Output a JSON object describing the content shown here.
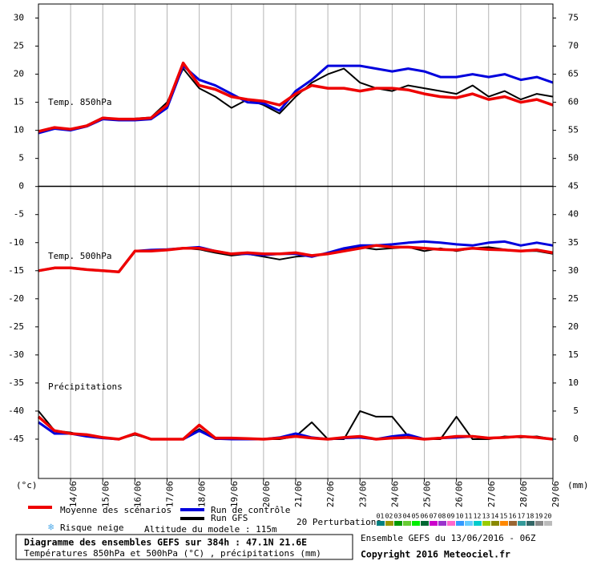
{
  "chart_data": {
    "type": "line",
    "x": [
      -1,
      -0.5,
      0,
      0.5,
      1,
      1.5,
      2,
      2.5,
      3,
      3.5,
      4,
      4.5,
      5,
      5.5,
      6,
      6.5,
      7,
      7.5,
      8,
      8.5,
      9,
      9.5,
      10,
      10.5,
      11,
      11.5,
      12,
      12.5,
      13,
      13.5,
      14,
      14.5,
      15
    ],
    "xlim": [
      -1,
      15
    ],
    "xticks": [
      {
        "value": 0,
        "label": "14/06"
      },
      {
        "value": 1,
        "label": "15/06"
      },
      {
        "value": 2,
        "label": "16/06"
      },
      {
        "value": 3,
        "label": "17/06"
      },
      {
        "value": 4,
        "label": "18/06"
      },
      {
        "value": 5,
        "label": "19/06"
      },
      {
        "value": 6,
        "label": "20/06"
      },
      {
        "value": 7,
        "label": "21/06"
      },
      {
        "value": 8,
        "label": "22/06"
      },
      {
        "value": 9,
        "label": "23/06"
      },
      {
        "value": 10,
        "label": "24/06"
      },
      {
        "value": 11,
        "label": "25/06"
      },
      {
        "value": 12,
        "label": "26/06"
      },
      {
        "value": 13,
        "label": "27/06"
      },
      {
        "value": 14,
        "label": "28/06"
      },
      {
        "value": 15,
        "label": "29/06"
      }
    ],
    "ylim": [
      -52,
      32.5
    ],
    "yticks": [
      30,
      25,
      20,
      15,
      10,
      5,
      0,
      -5,
      -10,
      -15,
      -20,
      -25,
      -30,
      -35,
      -40,
      -45
    ],
    "y2lim": [
      -7,
      77.5
    ],
    "y2ticks": [
      75,
      70,
      65,
      60,
      55,
      50,
      45,
      40,
      35,
      30,
      25,
      20,
      15,
      10,
      5,
      0
    ],
    "ylabel": "(°c)",
    "y2label": "(mm)",
    "grid": true,
    "annotations": [
      {
        "text": "Temp. 850hPa"
      },
      {
        "text": "Temp. 500hPa"
      },
      {
        "text": "Précipitations"
      }
    ],
    "series": [
      {
        "color": "#000000",
        "width": 2,
        "axis": "y",
        "values": [
          9.7,
          10.4,
          10.1,
          10.9,
          12.3,
          12,
          12.1,
          12.3,
          15,
          21,
          17.5,
          16,
          14,
          15.5,
          14.5,
          13,
          16,
          18.5,
          20,
          21,
          18.5,
          17.5,
          17,
          18,
          17.5,
          17,
          16.5,
          18,
          16,
          17,
          15.5,
          16.5,
          16
        ]
      },
      {
        "color": "#0000dd",
        "width": 3,
        "axis": "y",
        "values": [
          9.5,
          10.3,
          10,
          10.7,
          12,
          11.8,
          11.8,
          12,
          14,
          21.5,
          19,
          18,
          16.5,
          15,
          14.8,
          13.5,
          17,
          19,
          21.5,
          21.5,
          21.5,
          21,
          20.5,
          21,
          20.5,
          19.5,
          19.5,
          20,
          19.5,
          20,
          19,
          19.5,
          18.5
        ]
      },
      {
        "color": "#ee0000",
        "width": 3.5,
        "axis": "y",
        "values": [
          9.8,
          10.5,
          10.2,
          10.8,
          12.2,
          12,
          12,
          12.2,
          14.5,
          22,
          18,
          17.3,
          16,
          15.5,
          15.2,
          14.5,
          16.5,
          18,
          17.5,
          17.5,
          17,
          17.5,
          17.5,
          17.2,
          16.5,
          16,
          15.8,
          16.5,
          15.5,
          16,
          15,
          15.5,
          14.5
        ]
      },
      {
        "color": "#000000",
        "width": 2,
        "axis": "y",
        "values": [
          -15,
          -14.6,
          -14.5,
          -14.8,
          -15,
          -15.2,
          -11.5,
          -11.5,
          -11.2,
          -11,
          -11.2,
          -11.8,
          -12.3,
          -12,
          -12.5,
          -13,
          -12.5,
          -12.3,
          -12,
          -11.3,
          -10.8,
          -11.2,
          -11,
          -10.8,
          -11.5,
          -11,
          -11.5,
          -11,
          -10.8,
          -11.2,
          -11.5,
          -11.5,
          -12
        ]
      },
      {
        "color": "#0000dd",
        "width": 3,
        "axis": "y",
        "values": [
          -15,
          -14.5,
          -14.5,
          -14.8,
          -15,
          -15.2,
          -11.5,
          -11.3,
          -11.2,
          -11,
          -10.8,
          -11.5,
          -12,
          -12,
          -12.2,
          -12,
          -12,
          -12.5,
          -11.8,
          -11,
          -10.5,
          -10.5,
          -10.3,
          -10,
          -9.8,
          -10,
          -10.3,
          -10.5,
          -10,
          -9.8,
          -10.5,
          -10,
          -10.5
        ]
      },
      {
        "color": "#ee0000",
        "width": 3.5,
        "axis": "y",
        "values": [
          -15,
          -14.5,
          -14.5,
          -14.8,
          -15,
          -15.2,
          -11.5,
          -11.5,
          -11.3,
          -11,
          -11,
          -11.5,
          -12,
          -11.8,
          -12,
          -12,
          -11.8,
          -12.3,
          -12,
          -11.5,
          -11,
          -10.5,
          -10.8,
          -10.8,
          -11,
          -11.2,
          -11.3,
          -11,
          -11.2,
          -11.3,
          -11.5,
          -11.3,
          -11.8
        ]
      },
      {
        "color": "#000000",
        "width": 2,
        "axis": "y2",
        "values": [
          5,
          1.5,
          1.2,
          0.5,
          0.2,
          0,
          0.8,
          0,
          0,
          0,
          1.8,
          0,
          0,
          0,
          0,
          0,
          0.5,
          3,
          0,
          0,
          5,
          4,
          4,
          0.5,
          0,
          0,
          4,
          0,
          0,
          0.5,
          0.3,
          0.5,
          0
        ]
      },
      {
        "color": "#0000dd",
        "width": 3,
        "axis": "y2",
        "values": [
          3,
          1,
          1,
          0.5,
          0.2,
          0,
          1,
          0,
          0,
          0,
          1.5,
          0.1,
          0,
          0,
          0,
          0.3,
          1,
          0.3,
          0,
          0.2,
          0.3,
          0,
          0.5,
          0.8,
          0,
          0.2,
          0.3,
          0.5,
          0.2,
          0.3,
          0.5,
          0.3,
          0
        ]
      },
      {
        "color": "#ee0000",
        "width": 3.5,
        "axis": "y2",
        "values": [
          4,
          1.5,
          1,
          0.8,
          0.3,
          0,
          1,
          0,
          0,
          0,
          2.5,
          0.2,
          0.2,
          0.1,
          0,
          0.2,
          0.5,
          0.2,
          0,
          0.3,
          0.5,
          0,
          0.2,
          0.3,
          0,
          0.2,
          0.5,
          0.5,
          0.2,
          0.3,
          0.5,
          0.3,
          0
        ]
      }
    ],
    "legend": [
      {
        "name": "Moyenne des scénarios",
        "color": "#ee0000"
      },
      {
        "name": "Run de contrôle",
        "color": "#0000dd"
      },
      {
        "name": "Run GFS",
        "color": "#000000"
      }
    ],
    "snow_label": "Risque neige",
    "altitude": "Altitude du modele : 115m",
    "perturbations": {
      "label": "20 Perturbations",
      "items": [
        {
          "label": "01",
          "color": "#008080"
        },
        {
          "label": "02",
          "color": "#999900"
        },
        {
          "label": "03",
          "color": "#009900"
        },
        {
          "label": "04",
          "color": "#66cc33"
        },
        {
          "label": "05",
          "color": "#00ee00"
        },
        {
          "label": "06",
          "color": "#006633"
        },
        {
          "label": "07",
          "color": "#cc00cc"
        },
        {
          "label": "08",
          "color": "#9933cc"
        },
        {
          "label": "09",
          "color": "#ff66cc"
        },
        {
          "label": "10",
          "color": "#3399ff"
        },
        {
          "label": "11",
          "color": "#66ccff"
        },
        {
          "label": "12",
          "color": "#00cccc"
        },
        {
          "label": "13",
          "color": "#99cc00"
        },
        {
          "label": "14",
          "color": "#888800"
        },
        {
          "label": "15",
          "color": "#ff8800"
        },
        {
          "label": "16",
          "color": "#996633"
        },
        {
          "label": "17",
          "color": "#339999"
        },
        {
          "label": "18",
          "color": "#336666"
        },
        {
          "label": "19",
          "color": "#888888"
        },
        {
          "label": "20",
          "color": "#bbbbbb"
        }
      ]
    },
    "info_title": "Diagramme des ensembles GEFS sur 384h : 47.1N 21.6E",
    "info_subtitle": "Températures 850hPa et 500hPa (°C) , précipitations (mm)",
    "run": "Ensemble GEFS du 13/06/2016 - 06Z",
    "copyright": "Copyright 2016 Meteociel.fr"
  }
}
